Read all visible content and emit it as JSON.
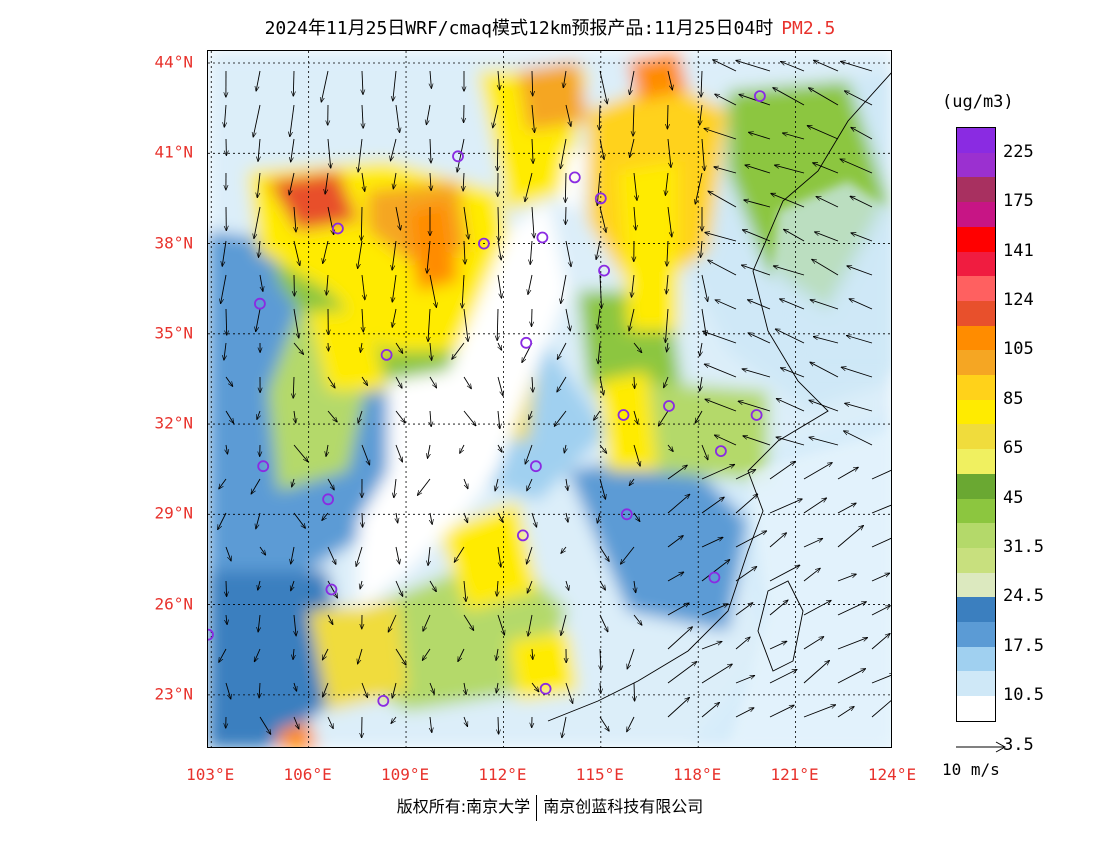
{
  "header": {
    "title": "2024年11月25日WRF/cmaq模式12km预报产品:11月25日04时",
    "pollutant": "PM2.5"
  },
  "map": {
    "lat_labels": [
      "44°N",
      "41°N",
      "38°N",
      "35°N",
      "32°N",
      "29°N",
      "26°N",
      "23°N"
    ],
    "lon_labels": [
      "103°E",
      "106°E",
      "109°E",
      "112°E",
      "115°E",
      "118°E",
      "121°E",
      "124°E"
    ],
    "extent": {
      "lon_min": 102.9,
      "lon_max": 124.0,
      "lat_min": 21.2,
      "lat_max": 44.4
    },
    "stations": [
      [
        119.9,
        42.9
      ],
      [
        110.6,
        40.9
      ],
      [
        106.9,
        38.5
      ],
      [
        111.4,
        38.0
      ],
      [
        113.2,
        38.2
      ],
      [
        114.2,
        40.2
      ],
      [
        115.0,
        39.5
      ],
      [
        115.1,
        37.1
      ],
      [
        104.5,
        36.0
      ],
      [
        108.4,
        34.3
      ],
      [
        112.7,
        34.7
      ],
      [
        115.7,
        32.3
      ],
      [
        117.1,
        32.6
      ],
      [
        118.7,
        31.1
      ],
      [
        119.8,
        32.3
      ],
      [
        104.6,
        30.6
      ],
      [
        106.6,
        29.5
      ],
      [
        113.0,
        30.6
      ],
      [
        112.6,
        28.3
      ],
      [
        115.8,
        29.0
      ],
      [
        106.7,
        26.5
      ],
      [
        102.9,
        25.0
      ],
      [
        108.3,
        22.8
      ],
      [
        113.3,
        23.2
      ],
      [
        118.5,
        26.9
      ]
    ]
  },
  "colorbar": {
    "unit": "(ug/m3)",
    "colors": [
      "#8a2be2",
      "#9b30d0",
      "#a83060",
      "#c71585",
      "#ff0000",
      "#f01c40",
      "#ff6060",
      "#e8502c",
      "#ff8c00",
      "#f5a623",
      "#ffd21a",
      "#ffeb00",
      "#f0dc3c",
      "#f0f060",
      "#6aa832",
      "#8cc63f",
      "#b4d96a",
      "#c8e07e",
      "#dce9bf",
      "#3b7fbf",
      "#5b9bd5",
      "#a0d0f0",
      "#cfe8f7",
      "#ffffff"
    ],
    "labels": [
      "225",
      "175",
      "141",
      "124",
      "105",
      "85",
      "65",
      "45",
      "31.5",
      "24.5",
      "17.5",
      "10.5",
      "3.5"
    ]
  },
  "wind_legend": {
    "label": "10 m/s"
  },
  "footer": {
    "copyright_a": "版权所有:南京大学",
    "copyright_b": "南京创蓝科技有限公司"
  }
}
